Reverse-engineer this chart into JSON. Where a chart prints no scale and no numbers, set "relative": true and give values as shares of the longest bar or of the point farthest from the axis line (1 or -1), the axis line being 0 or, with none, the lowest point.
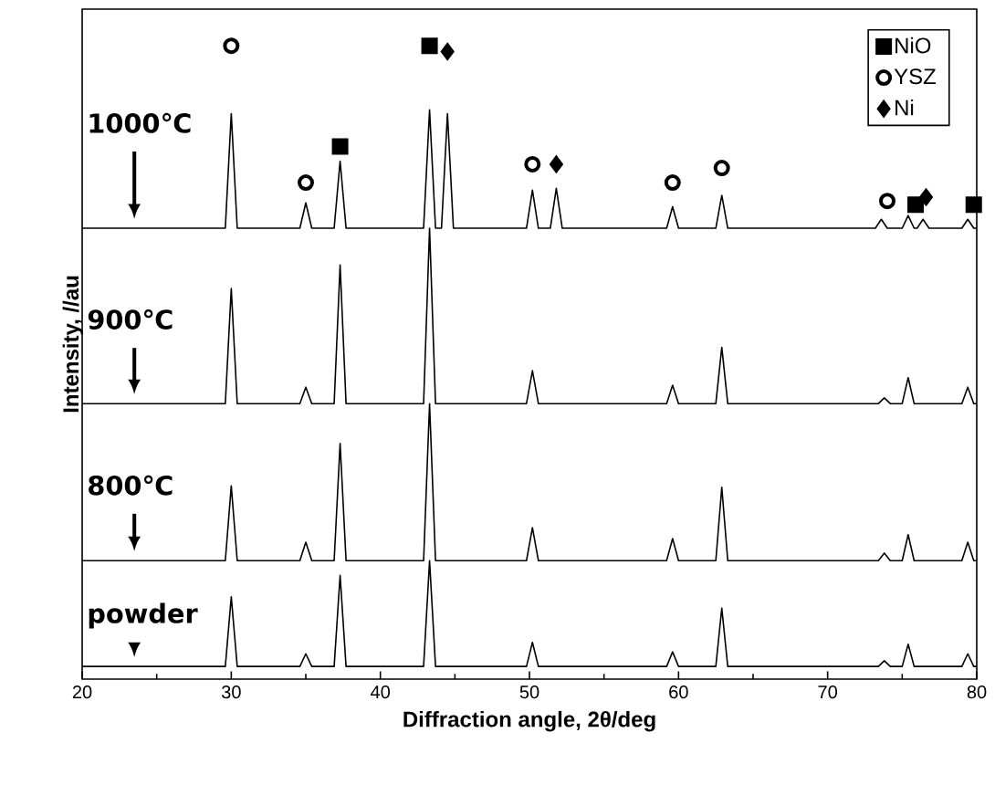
{
  "chart_data": {
    "type": "line",
    "relative": true,
    "xlabel": "Diffraction angle, 2θ/deg",
    "ylabel": "Intensity, //au",
    "xlim": [
      20,
      80
    ],
    "xticks": [
      20,
      30,
      40,
      50,
      60,
      70,
      80
    ],
    "legend": "top right",
    "tick_labels": "x",
    "series": [
      {
        "name": "1000℃",
        "color": "#000000",
        "x": [
          20,
          29.6,
          30.0,
          30.4,
          34.6,
          35.0,
          35.4,
          36.9,
          37.3,
          37.7,
          42.9,
          43.3,
          43.7,
          44.1,
          44.5,
          44.9,
          49.8,
          50.2,
          50.6,
          51.4,
          51.8,
          52.2,
          59.2,
          59.6,
          60.0,
          62.5,
          62.9,
          63.3,
          73.2,
          73.6,
          74.0,
          75.0,
          75.4,
          75.8,
          76.0,
          76.4,
          76.8,
          79.0,
          79.4,
          79.8,
          80
        ],
        "values": [
          0.712,
          0.712,
          0.893,
          0.712,
          0.712,
          0.752,
          0.712,
          0.712,
          0.818,
          0.712,
          0.712,
          0.899,
          0.712,
          0.712,
          0.893,
          0.712,
          0.712,
          0.772,
          0.712,
          0.712,
          0.775,
          0.712,
          0.712,
          0.746,
          0.712,
          0.712,
          0.764,
          0.712,
          0.712,
          0.726,
          0.712,
          0.712,
          0.732,
          0.712,
          0.712,
          0.726,
          0.712,
          0.712,
          0.726,
          0.712,
          0.712
        ]
      },
      {
        "name": "900℃",
        "color": "#000000",
        "x": [
          20,
          29.6,
          30.0,
          30.4,
          34.6,
          35.0,
          35.4,
          36.9,
          37.3,
          37.7,
          42.9,
          43.3,
          43.7,
          49.8,
          50.2,
          50.6,
          59.2,
          59.6,
          60.0,
          62.5,
          62.9,
          63.3,
          73.4,
          73.8,
          74.2,
          75.0,
          75.4,
          75.8,
          79.0,
          79.4,
          79.8,
          80
        ],
        "values": [
          0.435,
          0.435,
          0.617,
          0.435,
          0.435,
          0.461,
          0.435,
          0.435,
          0.654,
          0.435,
          0.435,
          0.712,
          0.435,
          0.435,
          0.487,
          0.435,
          0.435,
          0.464,
          0.435,
          0.435,
          0.524,
          0.435,
          0.435,
          0.444,
          0.435,
          0.435,
          0.476,
          0.435,
          0.435,
          0.461,
          0.435,
          0.435
        ]
      },
      {
        "name": "800℃",
        "color": "#000000",
        "x": [
          20,
          29.6,
          30.0,
          30.4,
          34.6,
          35.0,
          35.4,
          36.9,
          37.3,
          37.7,
          42.9,
          43.3,
          43.7,
          49.8,
          50.2,
          50.6,
          59.2,
          59.6,
          60.0,
          62.5,
          62.9,
          63.3,
          73.4,
          73.8,
          74.2,
          75.0,
          75.4,
          75.8,
          79.0,
          79.4,
          79.8,
          80
        ],
        "values": [
          0.187,
          0.187,
          0.305,
          0.187,
          0.187,
          0.216,
          0.187,
          0.187,
          0.372,
          0.187,
          0.187,
          0.435,
          0.187,
          0.187,
          0.239,
          0.187,
          0.187,
          0.222,
          0.187,
          0.187,
          0.303,
          0.187,
          0.187,
          0.199,
          0.187,
          0.187,
          0.228,
          0.187,
          0.187,
          0.216,
          0.187,
          0.187
        ]
      },
      {
        "name": "powder",
        "color": "#000000",
        "x": [
          20,
          29.6,
          30.0,
          30.4,
          34.6,
          35.0,
          35.4,
          36.9,
          37.3,
          37.7,
          42.9,
          43.3,
          43.7,
          49.8,
          50.2,
          50.6,
          59.2,
          59.6,
          60.0,
          62.5,
          62.9,
          63.3,
          73.4,
          73.8,
          74.2,
          75.0,
          75.4,
          75.8,
          79.0,
          79.4,
          79.8,
          80
        ],
        "values": [
          0.02,
          0.02,
          0.13,
          0.02,
          0.02,
          0.04,
          0.02,
          0.02,
          0.164,
          0.02,
          0.02,
          0.187,
          0.02,
          0.02,
          0.058,
          0.02,
          0.02,
          0.043,
          0.02,
          0.02,
          0.112,
          0.02,
          0.02,
          0.029,
          0.02,
          0.02,
          0.055,
          0.02,
          0.02,
          0.04,
          0.02,
          0.02
        ]
      },
      {
        "name": "NiO",
        "type": "scatter",
        "marker": "square",
        "color": "#000000",
        "x": [
          37.3,
          43.3,
          75.9,
          79.8
        ],
        "values": [
          0.841,
          1.0,
          0.749,
          0.749
        ]
      },
      {
        "name": "YSZ",
        "type": "scatter",
        "marker": "circle",
        "color": "#000000",
        "x": [
          30.0,
          35.0,
          50.2,
          59.6,
          62.9,
          74.0
        ],
        "values": [
          1.0,
          0.784,
          0.813,
          0.784,
          0.807,
          0.755
        ]
      },
      {
        "name": "Ni",
        "type": "scatter",
        "marker": "diamond",
        "color": "#000000",
        "x": [
          44.5,
          51.8,
          76.6
        ],
        "values": [
          0.991,
          0.813,
          0.761
        ]
      }
    ]
  }
}
